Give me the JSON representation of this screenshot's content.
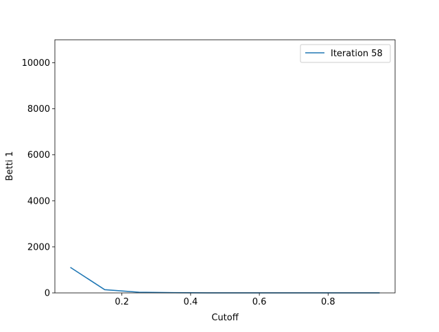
{
  "chart_data": {
    "type": "line",
    "title": "",
    "xlabel": "Cutoff",
    "ylabel": "Betti 1",
    "xlim": [
      0.005,
      0.995
    ],
    "ylim": [
      0,
      11000
    ],
    "xticks": [
      0.2,
      0.4,
      0.6,
      0.8
    ],
    "xtick_labels": [
      "0.2",
      "0.4",
      "0.6",
      "0.8"
    ],
    "yticks": [
      0,
      2000,
      4000,
      6000,
      8000,
      10000
    ],
    "ytick_labels": [
      "0",
      "2000",
      "4000",
      "6000",
      "8000",
      "10000"
    ],
    "grid": false,
    "legend": "top-right",
    "x": [
      0.05,
      0.15,
      0.25,
      0.35,
      0.45,
      0.55,
      0.65,
      0.75,
      0.85,
      0.95
    ],
    "series": [
      {
        "name": "Iteration 58",
        "color": "#1f77b4",
        "values": [
          1110,
          140,
          30,
          8,
          3,
          2,
          1,
          1,
          1,
          1
        ]
      }
    ]
  }
}
